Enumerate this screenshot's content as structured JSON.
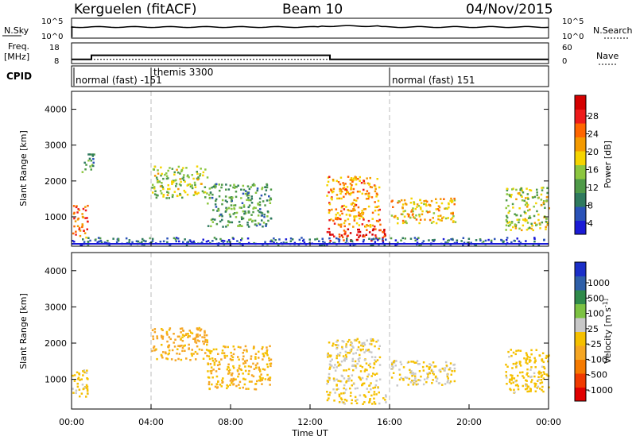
{
  "header": {
    "station": "Kerguelen (fitACF)",
    "beam": "Beam 10",
    "date": "04/Nov/2015"
  },
  "noise_panel": {
    "left_label": "N.Sky",
    "left_ticks": [
      "10^5",
      "10^0"
    ],
    "right_ticks": [
      "10^5",
      "10^0"
    ],
    "right_label": "N.Search"
  },
  "freq_panel": {
    "left_label_line1": "Freq.",
    "left_label_line2": "[MHz]",
    "left_ticks": [
      "18",
      "8"
    ],
    "right_ticks": [
      "60",
      "0"
    ],
    "right_label": "Nave",
    "freq_mhz_x": [
      0,
      1,
      1,
      13,
      13,
      24
    ],
    "freq_mhz_y": [
      10,
      10,
      12,
      12,
      10,
      10
    ],
    "nave_y": 12
  },
  "cpid": {
    "label": "CPID",
    "segments": [
      {
        "label": "normal (fast) -151",
        "start_hour": 0
      },
      {
        "label": "themis 3300",
        "start_hour": 3.3
      },
      {
        "label": "normal (fast) 151",
        "start_hour": 16
      }
    ]
  },
  "colors": {
    "power": [
      "#1b1bd6",
      "#2a52b8",
      "#2f7a5e",
      "#4f9a48",
      "#8cc63f",
      "#f5d400",
      "#f49a00",
      "#ff6600",
      "#ee1b1b",
      "#d40000"
    ],
    "velocity": [
      "#e00000",
      "#f03a00",
      "#f57a00",
      "#f5a623",
      "#f5c000",
      "#c8c8c8",
      "#7cc242",
      "#2f8a4a",
      "#2e5fa8",
      "#1b2fc8"
    ]
  },
  "chart_data": [
    {
      "type": "heatmap",
      "title": "",
      "xlabel": "",
      "ylabel": "Slant Range [km]",
      "xlim": [
        "00:00",
        "00:00"
      ],
      "ylim": [
        180,
        4500
      ],
      "x_ticks": [
        "00:00",
        "04:00",
        "08:00",
        "12:00",
        "16:00",
        "20:00",
        "00:00"
      ],
      "y_ticks": [
        "1000",
        "2000",
        "3000",
        "4000"
      ],
      "colorbar": {
        "label": "Power [dB]",
        "ticks": [
          "28",
          "24",
          "20",
          "16",
          "12",
          "8",
          "4"
        ],
        "range": [
          0,
          30
        ]
      },
      "regions": [
        {
          "t0": 0.0,
          "t1": 0.8,
          "r0": 400,
          "r1": 1300,
          "level": 22
        },
        {
          "t0": 0.5,
          "t1": 1.1,
          "r0": 2200,
          "r1": 2800,
          "level": 10
        },
        {
          "t0": 4.0,
          "t1": 6.8,
          "r0": 1500,
          "r1": 2400,
          "level": 14
        },
        {
          "t0": 6.8,
          "t1": 10.0,
          "r0": 700,
          "r1": 1900,
          "level": 10
        },
        {
          "t0": 12.8,
          "t1": 15.8,
          "r0": 300,
          "r1": 650,
          "level": 27
        },
        {
          "t0": 12.8,
          "t1": 15.5,
          "r0": 700,
          "r1": 2100,
          "level": 20
        },
        {
          "t0": 16.0,
          "t1": 19.3,
          "r0": 800,
          "r1": 1500,
          "level": 18
        },
        {
          "t0": 21.8,
          "t1": 24.0,
          "r0": 600,
          "r1": 1800,
          "level": 14
        },
        {
          "t0": 0.0,
          "t1": 24.0,
          "r0": 180,
          "r1": 400,
          "level": 6
        }
      ]
    },
    {
      "type": "heatmap",
      "title": "",
      "xlabel": "Time UT",
      "ylabel": "Slant Range [km]",
      "xlim": [
        "00:00",
        "00:00"
      ],
      "ylim": [
        180,
        4500
      ],
      "x_ticks": [
        "00:00",
        "04:00",
        "08:00",
        "12:00",
        "16:00",
        "20:00",
        "00:00"
      ],
      "y_ticks": [
        "1000",
        "2000",
        "3000",
        "4000"
      ],
      "colorbar": {
        "label": "Velocity [m s^-1]",
        "ticks": [
          "1000",
          "500",
          "100",
          "25",
          "-25",
          "-100",
          "-500",
          "-1000"
        ],
        "range": [
          -1000,
          1000
        ]
      },
      "regions": [
        {
          "t0": 0.0,
          "t1": 0.8,
          "r0": 400,
          "r1": 1300,
          "velocity": -50
        },
        {
          "t0": 4.0,
          "t1": 6.8,
          "r0": 1500,
          "r1": 2400,
          "velocity": -250
        },
        {
          "t0": 6.8,
          "t1": 10.0,
          "r0": 700,
          "r1": 1900,
          "velocity": -200
        },
        {
          "t0": 12.8,
          "t1": 15.8,
          "r0": 300,
          "r1": 650,
          "velocity": -60
        },
        {
          "t0": 12.8,
          "t1": 15.5,
          "r0": 700,
          "r1": 2100,
          "velocity": 0
        },
        {
          "t0": 16.0,
          "t1": 19.3,
          "r0": 800,
          "r1": 1500,
          "velocity": 0
        },
        {
          "t0": 21.8,
          "t1": 24.0,
          "r0": 600,
          "r1": 1800,
          "velocity": -80
        }
      ]
    }
  ]
}
